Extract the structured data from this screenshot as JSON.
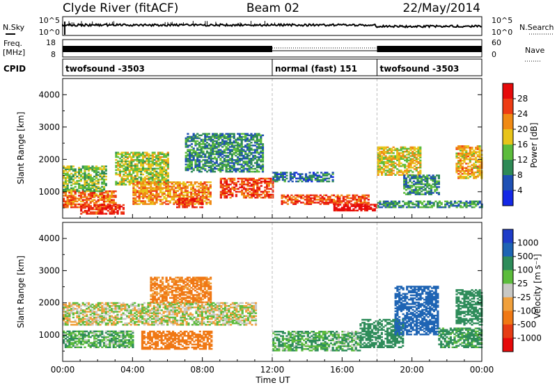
{
  "header": {
    "station": "Clyde River (fitACF)",
    "beam": "Beam 02",
    "date": "22/May/2014"
  },
  "status_panels": {
    "nsky_label": "N.Sky",
    "nsky_ticks": [
      "10^5",
      "10^0"
    ],
    "nsearch_label": "N.Search",
    "nsearch_ticks": [
      "10^5",
      "10^0"
    ],
    "freq_label": "Freq.",
    "freq_unit": "[MHz]",
    "freq_ticks": [
      "18",
      "8"
    ],
    "nave_label": "Nave",
    "nave_ticks": [
      "60",
      "0"
    ],
    "cpid_label": "CPID",
    "cpid_segments": [
      {
        "label": "twofsound -3503",
        "start_hour": 0,
        "end_hour": 12
      },
      {
        "label": "normal (fast) 151",
        "start_hour": 12,
        "end_hour": 18
      },
      {
        "label": "twofsound -3503",
        "start_hour": 18,
        "end_hour": 24
      }
    ]
  },
  "axes": {
    "y_label": "Slant Range [km]",
    "y_ticks": [
      "1000",
      "2000",
      "3000",
      "4000"
    ],
    "x_label": "Time UT",
    "x_ticks": [
      "00:00",
      "04:00",
      "08:00",
      "12:00",
      "16:00",
      "20:00",
      "00:00"
    ]
  },
  "power_scale": {
    "label": "Power [dB]",
    "ticks": [
      "4",
      "8",
      "12",
      "16",
      "20",
      "24",
      "28"
    ],
    "colors": [
      "#1428e6",
      "#1e50b4",
      "#2e8a56",
      "#5cbc3c",
      "#e8c41a",
      "#f08a14",
      "#ee3c14",
      "#e60a0a"
    ]
  },
  "velocity_scale": {
    "label": "Velocity [m s⁻¹]",
    "ticks": [
      "1000",
      "500",
      "100",
      "25",
      "-25",
      "-100",
      "-500",
      "-1000"
    ],
    "colors": [
      "#1e3cc8",
      "#1e64b4",
      "#2e8c5a",
      "#5cbc3c",
      "#c8c8c4",
      "#f0a03c",
      "#f07814",
      "#e63c14",
      "#e60a0a"
    ]
  },
  "chart_data": [
    {
      "type": "heatmap",
      "title": "Power",
      "xlabel": "Time UT",
      "ylabel": "Slant Range [km]",
      "xlim": [
        0,
        24
      ],
      "ylim": [
        180,
        4500
      ],
      "colorbar_label": "Power [dB]",
      "colorbar_range": [
        0,
        32
      ],
      "regions": [
        {
          "t": [
            0.0,
            3.0
          ],
          "r": [
            500,
            1000
          ],
          "value": 24
        },
        {
          "t": [
            0.0,
            2.5
          ],
          "r": [
            1000,
            1800
          ],
          "value": 14
        },
        {
          "t": [
            1.0,
            3.5
          ],
          "r": [
            300,
            600
          ],
          "value": 28
        },
        {
          "t": [
            3.0,
            6.0
          ],
          "r": [
            1200,
            2200
          ],
          "value": 16
        },
        {
          "t": [
            4.0,
            8.5
          ],
          "r": [
            600,
            1300
          ],
          "value": 22
        },
        {
          "t": [
            6.5,
            8.0
          ],
          "r": [
            500,
            800
          ],
          "value": 28
        },
        {
          "t": [
            7.0,
            11.5
          ],
          "r": [
            1600,
            2800
          ],
          "value": 10
        },
        {
          "t": [
            9.0,
            12.0
          ],
          "r": [
            800,
            1400
          ],
          "value": 26
        },
        {
          "t": [
            12.0,
            15.5
          ],
          "r": [
            1300,
            1600
          ],
          "value": 8
        },
        {
          "t": [
            12.5,
            17.5
          ],
          "r": [
            600,
            900
          ],
          "value": 26
        },
        {
          "t": [
            15.5,
            18.0
          ],
          "r": [
            400,
            600
          ],
          "value": 30
        },
        {
          "t": [
            18.0,
            24.0
          ],
          "r": [
            500,
            700
          ],
          "value": 10
        },
        {
          "t": [
            18.0,
            20.5
          ],
          "r": [
            1500,
            2400
          ],
          "value": 18
        },
        {
          "t": [
            19.5,
            21.5
          ],
          "r": [
            900,
            1500
          ],
          "value": 10
        },
        {
          "t": [
            22.5,
            24.0
          ],
          "r": [
            1400,
            2400
          ],
          "value": 20
        }
      ]
    },
    {
      "type": "heatmap",
      "title": "Velocity",
      "xlabel": "Time UT",
      "ylabel": "Slant Range [km]",
      "xlim": [
        0,
        24
      ],
      "ylim": [
        180,
        4500
      ],
      "colorbar_label": "Velocity [m s⁻¹]",
      "colorbar_range": [
        -1000,
        1000
      ],
      "regions": [
        {
          "t": [
            0.0,
            4.0
          ],
          "r": [
            600,
            1100
          ],
          "value": 100
        },
        {
          "t": [
            0.0,
            11.0
          ],
          "r": [
            1300,
            2000
          ],
          "value": 0
        },
        {
          "t": [
            4.5,
            8.5
          ],
          "r": [
            550,
            1100
          ],
          "value": -300
        },
        {
          "t": [
            5.0,
            8.5
          ],
          "r": [
            2000,
            2800
          ],
          "value": -150
        },
        {
          "t": [
            12.0,
            17.0
          ],
          "r": [
            500,
            1100
          ],
          "value": 100
        },
        {
          "t": [
            17.0,
            19.5
          ],
          "r": [
            600,
            1500
          ],
          "value": 200
        },
        {
          "t": [
            19.0,
            21.5
          ],
          "r": [
            1000,
            2500
          ],
          "value": 700
        },
        {
          "t": [
            21.5,
            24.0
          ],
          "r": [
            600,
            1200
          ],
          "value": 150
        },
        {
          "t": [
            22.5,
            24.0
          ],
          "r": [
            1300,
            2400
          ],
          "value": 300
        }
      ]
    }
  ]
}
